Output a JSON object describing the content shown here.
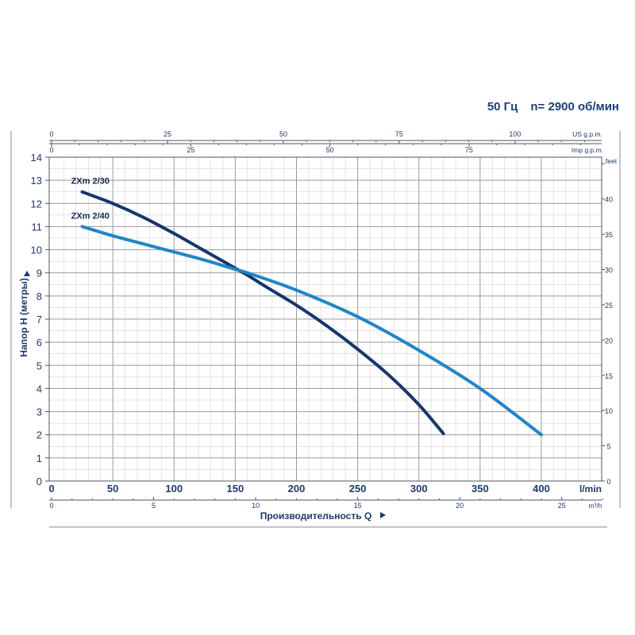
{
  "header": {
    "frequency": "50 Гц",
    "speed": "n= 2900 об/мин"
  },
  "chart_data": {
    "type": "line",
    "title": "",
    "xlabel": "Производительность Q",
    "ylabel": "Напор H (метры)",
    "xunit": "l/min",
    "xlim": [
      0,
      450
    ],
    "ylim": [
      0,
      14
    ],
    "grid": true,
    "x_ticks": [
      0,
      50,
      100,
      150,
      200,
      250,
      300,
      350,
      400
    ],
    "y_ticks": [
      0,
      1,
      2,
      3,
      4,
      5,
      6,
      7,
      8,
      9,
      10,
      11,
      12,
      13,
      14
    ],
    "secondary_axes": {
      "us_gpm": {
        "label": "US g.p.m.",
        "ticks": [
          0,
          25,
          50,
          75,
          100
        ]
      },
      "imp_gpm": {
        "label": "Imp g.p.m.",
        "ticks": [
          0,
          25,
          50,
          75
        ]
      },
      "m3h": {
        "label": "m³/h",
        "ticks": [
          0,
          5,
          10,
          15,
          20,
          25
        ]
      },
      "feet": {
        "label": "feet",
        "ticks": [
          0,
          5,
          10,
          15,
          20,
          25,
          30,
          35,
          40
        ]
      }
    },
    "series": [
      {
        "name": "ZXm 2/30",
        "color": "#17356e",
        "x": [
          25,
          50,
          75,
          100,
          125,
          150,
          160,
          175,
          200,
          225,
          250,
          275,
          300,
          320
        ],
        "y": [
          12.5,
          12.0,
          11.4,
          10.7,
          9.95,
          9.2,
          8.9,
          8.4,
          7.6,
          6.7,
          5.7,
          4.6,
          3.3,
          2.05
        ]
      },
      {
        "name": "ZXm 2/40",
        "color": "#1f86c8",
        "x": [
          25,
          50,
          75,
          100,
          125,
          150,
          160,
          200,
          250,
          300,
          350,
          400
        ],
        "y": [
          11.0,
          10.6,
          10.25,
          9.9,
          9.55,
          9.15,
          9.0,
          8.25,
          7.1,
          5.65,
          4.0,
          2.0
        ]
      }
    ]
  }
}
